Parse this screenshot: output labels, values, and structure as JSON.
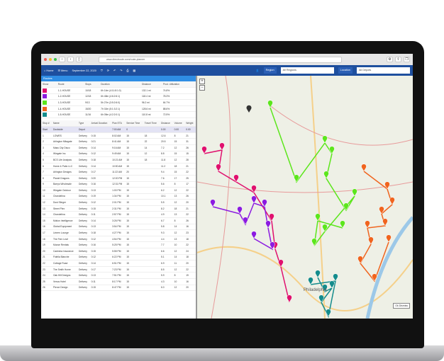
{
  "browser": {
    "url": "www.directroute.com/route-planner"
  },
  "toolbar": {
    "home": "Home",
    "menu": "Menu",
    "date": "September 22, 2020",
    "region_label": "Region",
    "region_value": "All Regions",
    "location_label": "Location",
    "location_value": "All Depots"
  },
  "routes": {
    "title": "Routes",
    "columns": [
      "Show",
      "Route",
      "Stops",
      "Duration",
      "Distance",
      "Prod. Utilization"
    ],
    "rows": [
      {
        "color": "#e0106e",
        "route": "1-1-HOUSE",
        "stops": "10/18",
        "duration": "6h 14m (4:11:8:1:0)",
        "distance": "132.1 mi",
        "util": "74.8%"
      },
      {
        "color": "#8b1be0",
        "route": "1-2-HOUSE",
        "stops": "12/18",
        "duration": "6h 48m (4:6:2:6:1)",
        "distance": "118.4 mi",
        "util": "78.3%"
      },
      {
        "color": "#5ce61c",
        "route": "1-3-HOUSE",
        "stops": "9/13",
        "duration": "5h 27m (3:5:2:6:0)",
        "distance": "96.2 mi",
        "util": "64.7%"
      },
      {
        "color": "#f0641e",
        "route": "1-4-HOUSE",
        "stops": "15/20",
        "duration": "7h 02m (5:1:3:2:1)",
        "distance": "128.6 mi",
        "util": "88.6%"
      },
      {
        "color": "#148c8c",
        "route": "1-5-HOUSE",
        "stops": "11/16",
        "duration": "6h 05m (4:2:2:0:1)",
        "distance": "110.8 mi",
        "util": "72.5%"
      }
    ]
  },
  "stops": {
    "columns": [
      "Stop #",
      "Name",
      "Type",
      "Arrival Duration",
      "Plan ETA",
      "Service Time",
      "Travel Time",
      "Distance",
      "Volume",
      "Weight"
    ],
    "rows": [
      [
        "Start",
        "Dockside",
        "Depot",
        "",
        "7:00 AM",
        "0",
        "",
        "0.00",
        "0.00",
        "0.00"
      ],
      [
        "1",
        "LOWES",
        "Delivery",
        "0:15",
        "8:02 AM",
        "15",
        "18",
        "12.6",
        "8",
        "21"
      ],
      [
        "2",
        "Arlington Mitagate",
        "Delivery",
        "0:21",
        "8:41 AM",
        "15",
        "22",
        "20.5",
        "15",
        "31"
      ],
      [
        "3",
        "Mass City Disco",
        "Delivery",
        "0:14",
        "9:16 AM",
        "15",
        "14",
        "7.2",
        "12",
        "26"
      ],
      [
        "4",
        "Wingate Inc.",
        "Delivery",
        "0:12",
        "9:49 AM",
        "15",
        "12",
        "8.8",
        "15",
        "15"
      ],
      [
        "5",
        "BCS Life Analysis",
        "Delivery",
        "0:18",
        "10:21 AM",
        "15",
        "18",
        "11.8",
        "12",
        "28"
      ],
      [
        "6",
        "Home & Patio LLC",
        "Delivery",
        "0:14",
        "10:50 AM",
        "15",
        "",
        "11.2",
        "18",
        "21"
      ],
      [
        "7",
        "Arlington Designs",
        "Delivery",
        "0:17",
        "11:22 AM",
        "20",
        "",
        "9.4",
        "15",
        "22"
      ],
      [
        "8",
        "Planet Dragons",
        "Delivery",
        "0:20",
        "12:00 PM",
        "15",
        "",
        "7.6",
        "17",
        "25"
      ],
      [
        "9",
        "Barrys Wholesale",
        "Delivery",
        "0:16",
        "12:31 PM",
        "15",
        "",
        "5.6",
        "8",
        "17"
      ],
      [
        "10",
        "Wingate Outdoor",
        "Delivery",
        "0:13",
        "1:00 PM",
        "15",
        "",
        "6.2",
        "12",
        "22"
      ],
      [
        "11",
        "Chandelina",
        "Delivery",
        "0:19",
        "1:34 PM",
        "15",
        "",
        "10.1",
        "13",
        "26"
      ],
      [
        "12",
        "Dust Slinger",
        "Delivery",
        "0:12",
        "2:01 PM",
        "15",
        "",
        "5.5",
        "12",
        "20"
      ],
      [
        "13",
        "Street Plex",
        "Delivery",
        "0:15",
        "2:31 PM",
        "15",
        "",
        "8.2",
        "18",
        "21"
      ],
      [
        "14",
        "Chandelina",
        "Delivery",
        "0:11",
        "2:57 PM",
        "15",
        "",
        "4.9",
        "13",
        "22"
      ],
      [
        "15",
        "Motion Intelligence",
        "Delivery",
        "0:14",
        "3:26 PM",
        "15",
        "",
        "6.7",
        "8",
        "26"
      ],
      [
        "16",
        "Global Equipment",
        "Delivery",
        "0:13",
        "3:54 PM",
        "15",
        "",
        "5.8",
        "14",
        "16"
      ],
      [
        "17",
        "Lineen Lounge",
        "Delivery",
        "0:18",
        "4:27 PM",
        "15",
        "",
        "9.3",
        "12",
        "23"
      ],
      [
        "18",
        "The Fern Leaf",
        "Delivery",
        "0:12",
        "4:54 PM",
        "15",
        "",
        "4.4",
        "13",
        "18"
      ],
      [
        "19",
        "Moose Rentals",
        "Delivery",
        "0:16",
        "5:25 PM",
        "15",
        "",
        "7.7",
        "10",
        "22"
      ],
      [
        "20",
        "Cadmina Insurance",
        "Delivery",
        "0:15",
        "5:55 PM",
        "15",
        "",
        "6.6",
        "12",
        "24"
      ],
      [
        "21",
        "Fidella Blanche",
        "Delivery",
        "0:12",
        "6:22 PM",
        "15",
        "",
        "5.1",
        "14",
        "18"
      ],
      [
        "22",
        "Cottage Road",
        "Delivery",
        "0:14",
        "6:51 PM",
        "15",
        "",
        "6.9",
        "11",
        "20"
      ],
      [
        "23",
        "The Smith Home",
        "Delivery",
        "0:17",
        "7:23 PM",
        "15",
        "",
        "8.5",
        "12",
        "22"
      ],
      [
        "24",
        "Oak Hill Designs",
        "Delivery",
        "0:13",
        "7:51 PM",
        "15",
        "",
        "5.9",
        "8",
        "19"
      ],
      [
        "25",
        "Venus Hotel",
        "Delivery",
        "0:11",
        "8:17 PM",
        "15",
        "",
        "4.3",
        "10",
        "16"
      ],
      [
        "26",
        "Pierce Design",
        "Delivery",
        "0:15",
        "8:47 PM",
        "15",
        "",
        "6.0",
        "12",
        "20"
      ]
    ]
  },
  "map": {
    "zoom_in": "+",
    "zoom_out": "−",
    "button": "Ok Dismiss",
    "city": "Philadelphia"
  }
}
